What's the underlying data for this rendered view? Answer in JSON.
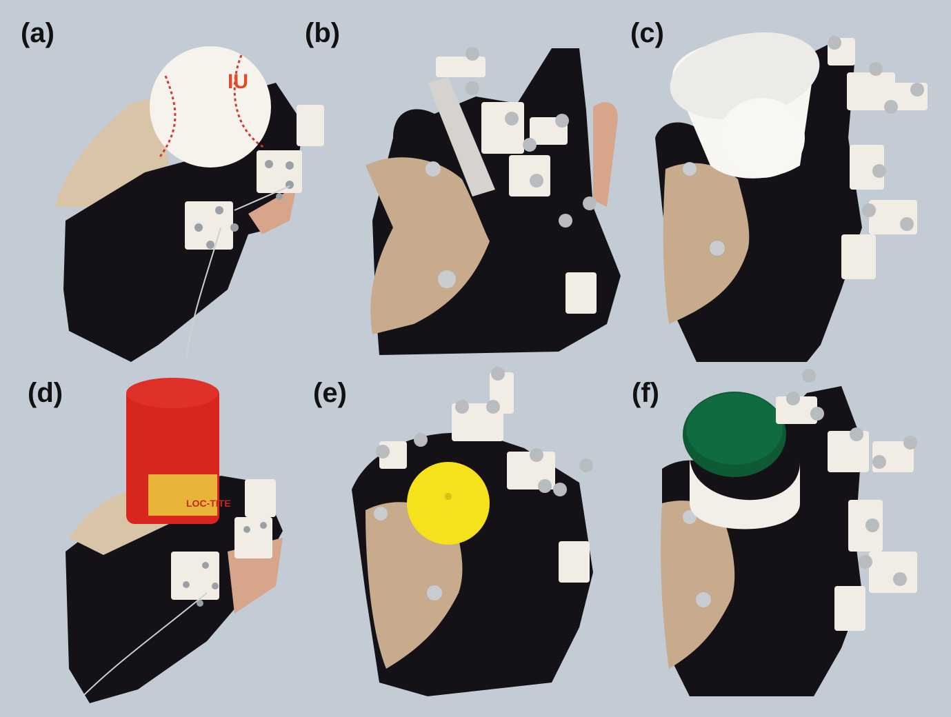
{
  "figure": {
    "panels": [
      {
        "id": "a",
        "label": "(a)",
        "object": "baseball",
        "object_logo_text": "IU"
      },
      {
        "id": "b",
        "label": "(b)",
        "object": "flat-card"
      },
      {
        "id": "c",
        "label": "(c)",
        "object": "paper-cup"
      },
      {
        "id": "d",
        "label": "(d)",
        "object": "red-can",
        "object_logo_text": "LOC-TITE"
      },
      {
        "id": "e",
        "label": "(e)",
        "object": "yellow-cap"
      },
      {
        "id": "f",
        "label": "(f)",
        "object": "green-jar-lid"
      }
    ],
    "colors": {
      "background": "#c3ccd5",
      "glove": "#141217",
      "splint": "#c7ab8c",
      "sensor_block": "#f1ede4",
      "marker": "#b9bcbf",
      "ball_stitch": "#d23a2f",
      "can_red": "#d8261f",
      "cap_yellow": "#f5e21b",
      "lid_green": "#0d5a34"
    }
  }
}
